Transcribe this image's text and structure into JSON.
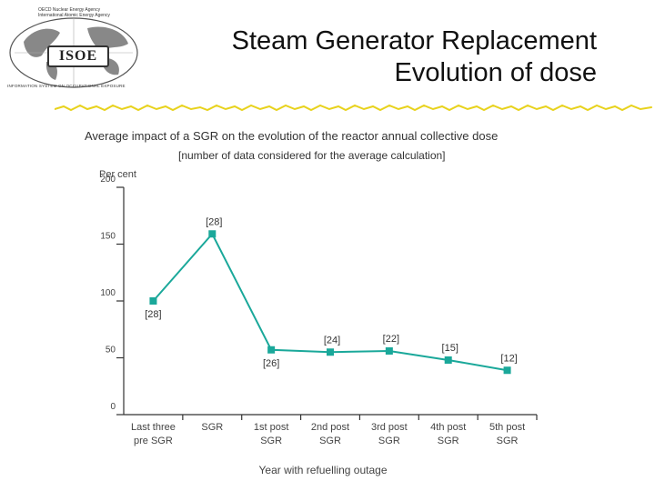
{
  "logo": {
    "org_line1": "OECD Nuclear Energy Agency",
    "org_line2": "International Atomic Energy Agency",
    "name": "ISOE",
    "subtitle": "INFORMATION SYSTEM ON OCCUPATIONAL EXPOSURE"
  },
  "slide": {
    "title_line1": "Steam Generator Replacement",
    "title_line2": "Evolution of dose"
  },
  "colors": {
    "series": "#1aa89a",
    "axis": "#333333",
    "zigzag": "#e8d21c"
  },
  "chart_data": {
    "type": "line",
    "title": "Average impact of a SGR on the evolution of the reactor annual collective dose",
    "subtitle": "[number of data considered for the average calculation]",
    "ylabel": "Per cent",
    "xlabel": "Year with refuelling outage",
    "ylim": [
      0,
      200
    ],
    "yticks": [
      "0",
      "50",
      "100",
      "150",
      "200"
    ],
    "categories": [
      [
        "Last three",
        "pre SGR"
      ],
      [
        "SGR"
      ],
      [
        "1st post",
        "SGR"
      ],
      [
        "2nd post",
        "SGR"
      ],
      [
        "3rd post",
        "SGR"
      ],
      [
        "4th post",
        "SGR"
      ],
      [
        "5th post",
        "SGR"
      ]
    ],
    "values": [
      100,
      159,
      57,
      55,
      56,
      48,
      39
    ],
    "data_labels": [
      "[28]",
      "[28]",
      "[26]",
      "[24]",
      "[22]",
      "[15]",
      "[12]"
    ],
    "label_positions": [
      "below",
      "above",
      "below",
      "above",
      "above",
      "above",
      "above"
    ]
  }
}
